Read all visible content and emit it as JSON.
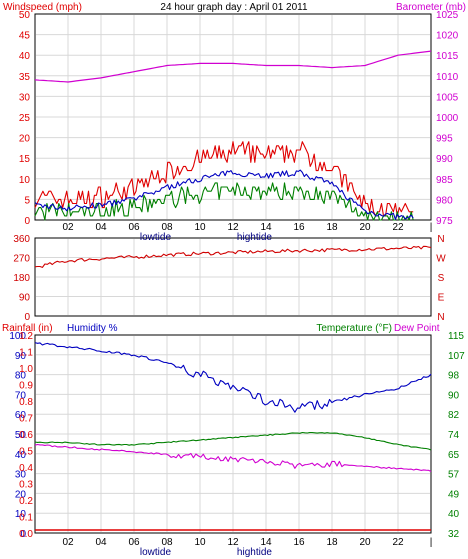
{
  "colors": {
    "windspeed": "#e00000",
    "windavg": "#0000c0",
    "windgust_low": "#008000",
    "barometer": "#d000d0",
    "direction": "#d00000",
    "rainfall": "#e00000",
    "humidity": "#0000c0",
    "temperature": "#008000",
    "dewpoint": "#d000d0",
    "tide_text": "#000080",
    "grid": "#d8d8d8",
    "frame": "#000000"
  },
  "header": {
    "windspeed_label": "Windspeed (mph)",
    "title": "24 hour graph day : April 01 2011",
    "barometer_label": "Barometer (mb)"
  },
  "x_axis": {
    "ticks": [
      "02",
      "04",
      "06",
      "08",
      "10",
      "12",
      "14",
      "16",
      "18",
      "20",
      "22"
    ],
    "end_marker": "|",
    "lowtide": "lowtide",
    "hightide": "hightide"
  },
  "wind_panel": {
    "left_ticks": [
      "50",
      "45",
      "40",
      "35",
      "30",
      "25",
      "20",
      "15",
      "10",
      "5",
      "0"
    ],
    "right_ticks": [
      "1025",
      "1020",
      "1015",
      "1010",
      "1005",
      "1000",
      "995",
      "990",
      "985",
      "980",
      "975"
    ]
  },
  "dir_panel": {
    "left_ticks": [
      "360",
      "270",
      "180",
      "90",
      "0"
    ],
    "right_letters": [
      "N",
      "W",
      "S",
      "E",
      "N"
    ]
  },
  "bottom_panel": {
    "rain_label": "Rainfall (in)",
    "humidity_label": "Humidity %",
    "temperature_label": "Temperature (°F)",
    "dewpoint_label": "Dew Point",
    "humidity_ticks": [
      "100",
      "90",
      "80",
      "70",
      "60",
      "50",
      "40",
      "30",
      "20",
      "10",
      "0"
    ],
    "rain_ticks": [
      "1.2",
      "1.1",
      "1.0",
      "0.9",
      "0.8",
      "0.7",
      "0.6",
      "0.5",
      "0.4",
      "0.3",
      "0.2",
      "0.1",
      "0.0"
    ],
    "temp_ticks": [
      "115",
      "107",
      "98",
      "90",
      "82",
      "74",
      "65",
      "57",
      "49",
      "40",
      "32"
    ]
  },
  "chart_data": [
    {
      "type": "line",
      "title": "24 hour graph day : April 01 2011",
      "xlabel": "",
      "ylabel": "Windspeed (mph)",
      "ylim": [
        0,
        50
      ],
      "y2label": "Barometer (mb)",
      "y2lim": [
        975,
        1025
      ],
      "x": [
        0,
        2,
        4,
        6,
        8,
        10,
        12,
        14,
        16,
        18,
        20,
        22,
        24
      ],
      "series": [
        {
          "name": "Windspeed (mph)",
          "axis": "left",
          "values": [
            5,
            4,
            5,
            7,
            11,
            14,
            16,
            15,
            16,
            12,
            3,
            1,
            0
          ]
        },
        {
          "name": "Barometer (mb)",
          "axis": "right",
          "values": [
            1009,
            1008.5,
            1009.5,
            1011,
            1012.5,
            1013,
            1013,
            1012.5,
            1012.5,
            1012,
            1012.5,
            1015,
            1016
          ]
        }
      ],
      "grid": true
    },
    {
      "type": "line",
      "ylabel": "Wind direction",
      "ylim": [
        0,
        360
      ],
      "x": [
        0,
        2,
        4,
        6,
        8,
        10,
        12,
        14,
        16,
        18,
        20,
        22,
        24
      ],
      "series": [
        {
          "values": [
            225,
            255,
            265,
            272,
            282,
            288,
            293,
            298,
            302,
            305,
            308,
            312,
            315
          ]
        }
      ],
      "grid": true
    },
    {
      "type": "line",
      "ylabel": "Humidity %",
      "ylim": [
        0,
        100
      ],
      "y2label": "Temperature (°F)",
      "y2lim": [
        32,
        115
      ],
      "x": [
        0,
        2,
        4,
        6,
        8,
        10,
        12,
        14,
        16,
        18,
        20,
        22,
        24
      ],
      "series": [
        {
          "name": "Humidity %",
          "axis": "left",
          "values": [
            96,
            94,
            92,
            90,
            86,
            80,
            74,
            67,
            63,
            66,
            70,
            73,
            80
          ]
        },
        {
          "name": "Temperature (°F)",
          "axis": "right",
          "values": [
            70,
            70,
            69,
            69,
            70,
            71,
            72,
            73,
            74,
            74,
            72,
            69,
            67
          ]
        },
        {
          "name": "Dew Point",
          "axis": "right",
          "values": [
            69,
            68,
            67,
            66,
            65,
            64,
            63,
            62,
            60,
            61,
            60,
            59,
            58
          ]
        },
        {
          "name": "Rainfall (in)",
          "axis": "rain",
          "values": [
            0,
            0,
            0,
            0,
            0,
            0,
            0,
            0,
            0,
            0,
            0,
            0,
            0
          ]
        }
      ],
      "grid": true
    }
  ]
}
